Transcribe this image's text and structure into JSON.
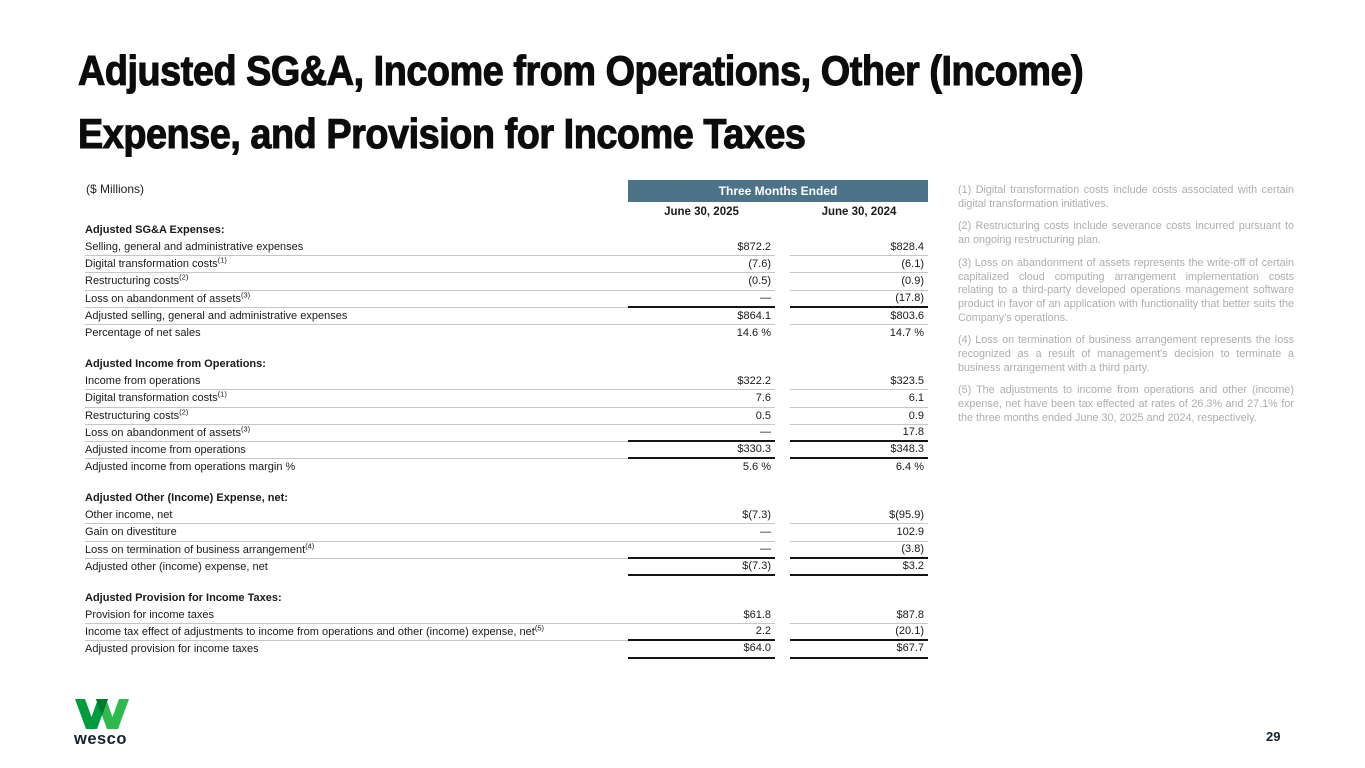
{
  "slide": {
    "title_line1": "Adjusted SG&A, Income from Operations, Other (Income)",
    "title_line2": "Expense, and Provision for Income Taxes",
    "units_label": "($ Millions)",
    "page_number": "29",
    "logo_text": "wesco"
  },
  "colors": {
    "header_bar": "#4d7389",
    "body_text": "#1a1a1a",
    "footnote_text": "#adadad",
    "thin_rule": "#c6c6c6",
    "thick_rule": "#141414",
    "logo_green_dark": "#009b3e",
    "logo_green_light": "#2eb94e",
    "logo_green_overlap": "#007a31",
    "logo_navy": "#13242f"
  },
  "table": {
    "period_header": "Three Months Ended",
    "col_headers": [
      "June 30, 2025",
      "June 30, 2024"
    ],
    "sections": [
      {
        "header": "Adjusted SG&A Expenses:",
        "rows": [
          {
            "label": "Selling, general and administrative expenses",
            "sup": "",
            "v1": "$872.2",
            "v2": "$828.4",
            "label_rule": "thin",
            "num_rule": "thin"
          },
          {
            "label": "Digital transformation costs",
            "sup": "(1)",
            "v1": "(7.6)",
            "v2": "(6.1)",
            "label_rule": "thin",
            "num_rule": "thin"
          },
          {
            "label": "Restructuring costs",
            "sup": "(2)",
            "v1": "(0.5)",
            "v2": "(0.9)",
            "label_rule": "thin",
            "num_rule": "thin"
          },
          {
            "label": "Loss on abandonment of assets",
            "sup": "(3)",
            "v1": "—",
            "v2": "(17.8)",
            "label_rule": "thin",
            "num_rule": "thick"
          },
          {
            "label": "Adjusted selling, general and administrative expenses",
            "sup": "",
            "v1": "$864.1",
            "v2": "$803.6",
            "label_rule": "thin",
            "num_rule": "thin"
          },
          {
            "label": "Percentage of net sales",
            "sup": "",
            "v1": "14.6 %",
            "v2": "14.7 %",
            "label_rule": "none",
            "num_rule": "none"
          }
        ]
      },
      {
        "header": "Adjusted Income from Operations:",
        "rows": [
          {
            "label": "Income from operations",
            "sup": "",
            "v1": "$322.2",
            "v2": "$323.5",
            "label_rule": "thin",
            "num_rule": "thin"
          },
          {
            "label": "Digital transformation costs",
            "sup": "(1)",
            "v1": "7.6",
            "v2": "6.1",
            "label_rule": "thin",
            "num_rule": "thin"
          },
          {
            "label": "Restructuring costs",
            "sup": "(2)",
            "v1": "0.5",
            "v2": "0.9",
            "label_rule": "thin",
            "num_rule": "thin"
          },
          {
            "label": "Loss on abandonment of assets",
            "sup": "(3)",
            "v1": "—",
            "v2": "17.8",
            "label_rule": "thin",
            "num_rule": "thick"
          },
          {
            "label": "Adjusted income from operations",
            "sup": "",
            "v1": "$330.3",
            "v2": "$348.3",
            "label_rule": "thin",
            "num_rule": "thick"
          },
          {
            "label": "Adjusted income from operations margin %",
            "sup": "",
            "v1": "5.6 %",
            "v2": "6.4 %",
            "label_rule": "none",
            "num_rule": "none"
          }
        ]
      },
      {
        "header": "Adjusted Other (Income) Expense, net:",
        "rows": [
          {
            "label": "Other income, net",
            "sup": "",
            "v1": "$(7.3)",
            "v2": "$(95.9)",
            "label_rule": "thin",
            "num_rule": "thin"
          },
          {
            "label": "Gain on divestiture",
            "sup": "",
            "v1": "—",
            "v2": "102.9",
            "label_rule": "thin",
            "num_rule": "thin"
          },
          {
            "label": "Loss on termination of business arrangement",
            "sup": "(4)",
            "v1": "—",
            "v2": "(3.8)",
            "label_rule": "thin",
            "num_rule": "thick"
          },
          {
            "label": "Adjusted other (income) expense, net",
            "sup": "",
            "v1": "$(7.3)",
            "v2": "$3.2",
            "label_rule": "none",
            "num_rule": "thick"
          }
        ]
      },
      {
        "header": "Adjusted Provision for Income Taxes:",
        "rows": [
          {
            "label": "Provision for income taxes",
            "sup": "",
            "v1": "$61.8",
            "v2": "$87.8",
            "label_rule": "thin",
            "num_rule": "thin"
          },
          {
            "label": "Income tax effect of adjustments to income from operations and other (income) expense, net",
            "sup": "(5)",
            "v1": "2.2",
            "v2": "(20.1)",
            "label_rule": "thin",
            "num_rule": "thick"
          },
          {
            "label": "Adjusted provision for income taxes",
            "sup": "",
            "v1": "$64.0",
            "v2": "$67.7",
            "label_rule": "none",
            "num_rule": "thick"
          }
        ]
      }
    ]
  },
  "footnotes": [
    "(1) Digital transformation costs include costs associated with certain digital transformation initiatives.",
    "(2) Restructuring costs include severance costs incurred pursuant to an ongoing restructuring plan.",
    "(3)  Loss on abandonment of assets represents the write-off of certain capitalized cloud computing arrangement implementation costs relating to a third-party developed operations management software product in favor of an application with functionality that better suits the Company's operations.",
    "(4) Loss on termination of business arrangement represents the loss recognized as a result of management's decision to terminate a business arrangement with a third party.",
    "(5) The adjustments to income from operations and other (income) expense, net have been tax effected at rates of 26.3% and 27.1% for the three months ended June 30, 2025 and 2024, respectively."
  ]
}
